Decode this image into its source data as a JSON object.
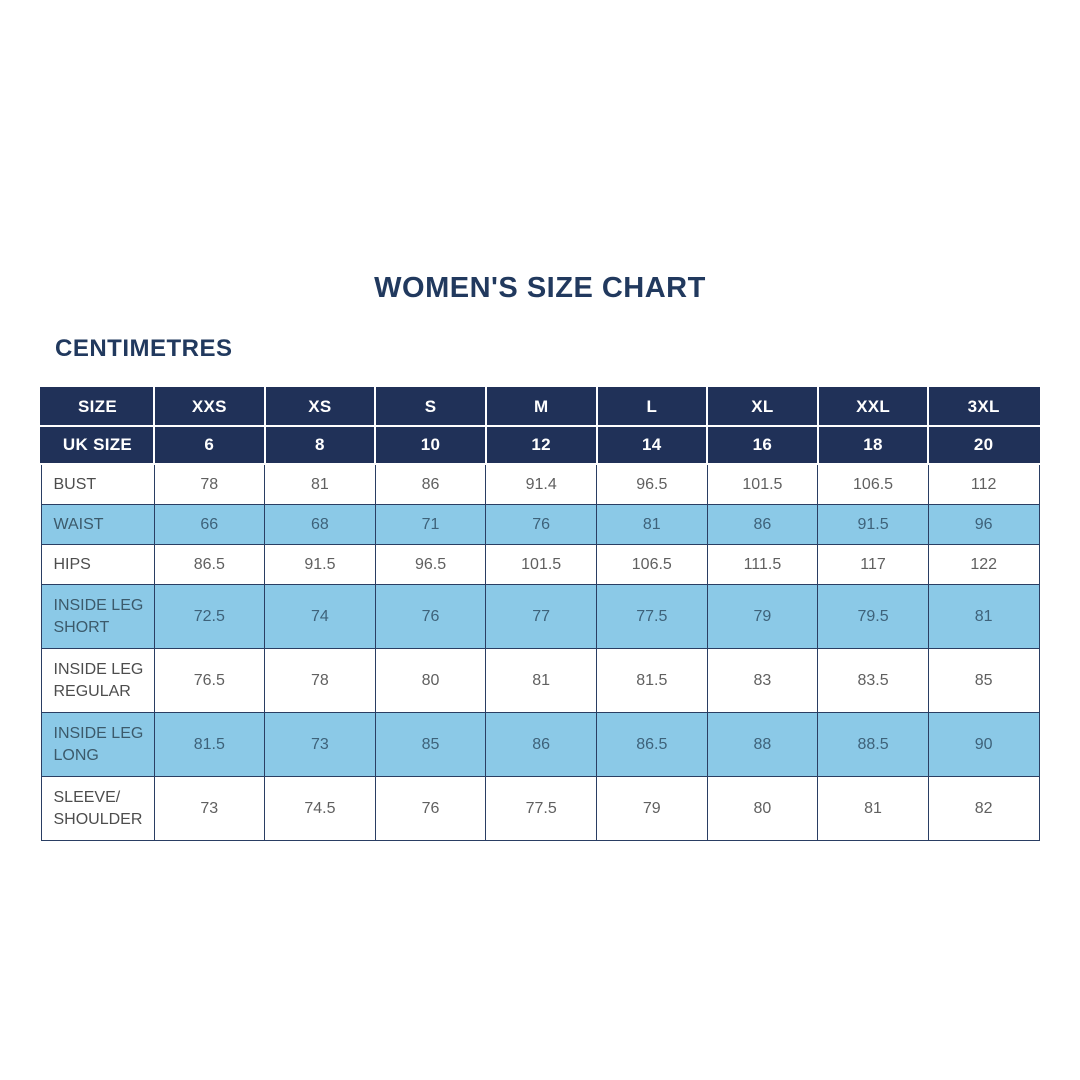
{
  "page": {
    "title": "WOMEN'S SIZE CHART",
    "unit_label": "CENTIMETRES"
  },
  "colors": {
    "title_navy": "#21395e",
    "header_navy": "#203158",
    "row_highlight_blue": "#8bc9e7",
    "cell_border": "#2a3e63",
    "label_text": "#4d4d4d",
    "value_text": "#606060",
    "highlight_text": "#3e627a"
  },
  "chart_data": {
    "type": "table",
    "title": "WOMEN'S SIZE CHART",
    "unit": "CENTIMETRES",
    "header_rows": [
      {
        "label": "SIZE",
        "values": [
          "XXS",
          "XS",
          "S",
          "M",
          "L",
          "XL",
          "XXL",
          "3XL"
        ]
      },
      {
        "label": "UK SIZE",
        "values": [
          "6",
          "8",
          "10",
          "12",
          "14",
          "16",
          "18",
          "20"
        ]
      }
    ],
    "rows": [
      {
        "label": "BUST",
        "highlight": false,
        "values": [
          "78",
          "81",
          "86",
          "91.4",
          "96.5",
          "101.5",
          "106.5",
          "112"
        ]
      },
      {
        "label": "WAIST",
        "highlight": true,
        "values": [
          "66",
          "68",
          "71",
          "76",
          "81",
          "86",
          "91.5",
          "96"
        ]
      },
      {
        "label": "HIPS",
        "highlight": false,
        "values": [
          "86.5",
          "91.5",
          "96.5",
          "101.5",
          "106.5",
          "111.5",
          "117",
          "122"
        ]
      },
      {
        "label": "INSIDE LEG SHORT",
        "highlight": true,
        "values": [
          "72.5",
          "74",
          "76",
          "77",
          "77.5",
          "79",
          "79.5",
          "81"
        ]
      },
      {
        "label": "INSIDE LEG REGULAR",
        "highlight": false,
        "values": [
          "76.5",
          "78",
          "80",
          "81",
          "81.5",
          "83",
          "83.5",
          "85"
        ]
      },
      {
        "label": "INSIDE LEG LONG",
        "highlight": true,
        "values": [
          "81.5",
          "73",
          "85",
          "86",
          "86.5",
          "88",
          "88.5",
          "90"
        ]
      },
      {
        "label": "SLEEVE/ SHOULDER",
        "highlight": false,
        "values": [
          "73",
          "74.5",
          "76",
          "77.5",
          "79",
          "80",
          "81",
          "82"
        ]
      }
    ]
  }
}
